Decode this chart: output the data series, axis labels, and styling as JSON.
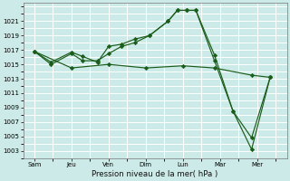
{
  "background_color": "#cceae7",
  "grid_color": "#ffffff",
  "line_color": "#1a5c1a",
  "marker_color": "#1a5c1a",
  "xlabel": "Pression niveau de la mer( hPa )",
  "ylim": [
    1002,
    1023.5
  ],
  "yticks": [
    1003,
    1005,
    1007,
    1009,
    1011,
    1013,
    1015,
    1017,
    1019,
    1021
  ],
  "x_labels": [
    "Sam",
    "Jeu",
    "Ven",
    "Dim",
    "Lun",
    "Mar",
    "Mer"
  ],
  "x_positions": [
    0,
    1,
    2,
    3,
    4,
    5,
    6
  ],
  "xlim": [
    -0.3,
    6.8
  ],
  "series": [
    {
      "x": [
        0,
        0.45,
        1.0,
        1.3,
        1.7,
        2.0,
        2.35,
        2.7,
        3.1,
        3.6,
        3.85,
        4.1,
        4.35,
        4.85,
        5.35,
        5.85,
        6.35
      ],
      "y": [
        1016.8,
        1015.3,
        1016.7,
        1016.1,
        1015.3,
        1017.5,
        1017.8,
        1018.5,
        1019.0,
        1021.0,
        1022.5,
        1022.5,
        1022.5,
        1016.3,
        1008.5,
        1004.8,
        1013.2
      ]
    },
    {
      "x": [
        0,
        0.45,
        1.0,
        1.3,
        1.7,
        2.0,
        2.35,
        2.7,
        3.1,
        3.6,
        3.85,
        4.1,
        4.35,
        4.85,
        5.35,
        5.85,
        6.35
      ],
      "y": [
        1016.8,
        1015.0,
        1016.5,
        1015.5,
        1015.5,
        1016.5,
        1017.5,
        1018.0,
        1019.0,
        1021.0,
        1022.5,
        1022.5,
        1022.5,
        1015.5,
        1008.5,
        1003.2,
        1013.2
      ]
    },
    {
      "x": [
        0,
        1.0,
        2.0,
        3.0,
        4.0,
        4.85,
        5.85,
        6.35
      ],
      "y": [
        1016.8,
        1014.5,
        1015.0,
        1014.5,
        1014.8,
        1014.5,
        1013.5,
        1013.2
      ]
    }
  ]
}
